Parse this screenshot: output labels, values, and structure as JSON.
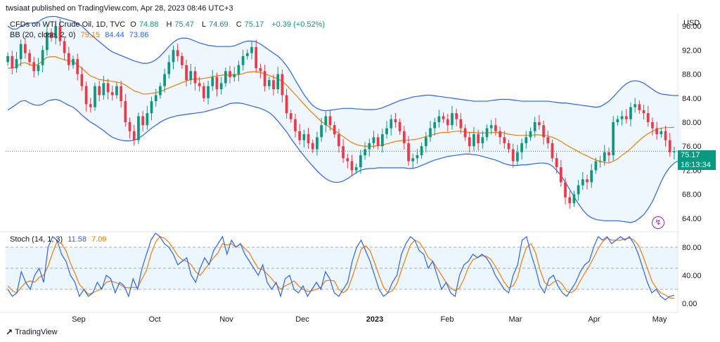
{
  "header": {
    "published": "twsiaat published on TradingView.com, Apr 28, 2023 08:46 UTC+3"
  },
  "legend": {
    "symbol": "CFDs on WTI Crude Oil, 1D, TVC",
    "o_label": "O",
    "o_value": "74.88",
    "h_label": "H",
    "h_value": "75.47",
    "l_label": "L",
    "l_value": "74.69",
    "c_label": "C",
    "c_value": "75.17",
    "change": "+0.39 (+0.52%)",
    "bb_label": "BB (20, close, 2, 0)",
    "bb_mid": "79.15",
    "bb_upper": "84.44",
    "bb_lower": "73.86",
    "stoch_label": "Stoch (14, 1, 3)",
    "stoch_k": "11.58",
    "stoch_d": "7.09"
  },
  "axis": {
    "currency": "USD",
    "price_tag": "75.17",
    "countdown": "16:13:34"
  },
  "footer": {
    "brand": "TradingView"
  },
  "colors": {
    "up": "#089981",
    "down": "#f23645",
    "bb_mid": "#f57c00",
    "bb_band": "#2962ff",
    "bb_fill": "#e3f2fd",
    "stoch_k": "#2962ff",
    "stoch_d": "#f57c00",
    "stoch_fill": "#e3f2fd",
    "grid": "#e0e3eb"
  },
  "icons": {
    "bolt": "lightning-icon",
    "logo": "tradingview-logo-icon"
  },
  "chart_data": [
    {
      "type": "candlestick",
      "ylim": [
        62,
        98
      ],
      "y_ticks": [
        "96.00",
        "92.00",
        "88.00",
        "84.00",
        "80.00",
        "76.00",
        "72.00",
        "68.00",
        "64.00"
      ],
      "x_ticks": [
        "Sep",
        "Oct",
        "Nov",
        "Dec",
        "2023",
        "Feb",
        "Mar",
        "Apr",
        "May"
      ],
      "period": "2022-08 to 2023-04",
      "close": [
        91,
        89,
        90.5,
        93,
        91.5,
        90,
        88.5,
        89.5,
        92,
        95,
        94,
        96,
        93.5,
        91.5,
        89.5,
        90.5,
        88,
        86,
        83,
        82.5,
        86,
        84.5,
        86.5,
        85,
        84.5,
        86,
        83.5,
        80,
        78.5,
        77,
        81,
        79.5,
        81.5,
        83.5,
        84.5,
        86,
        88,
        90,
        92,
        91,
        89.5,
        87,
        88.5,
        86.5,
        86,
        84,
        86,
        87.5,
        85.5,
        86.5,
        88.5,
        87.5,
        88,
        89.5,
        91,
        91.5,
        92.5,
        89,
        88.5,
        86,
        87,
        85.5,
        88,
        84.5,
        81.5,
        80.5,
        78.5,
        77,
        78,
        76.5,
        75.5,
        77.5,
        79.5,
        81,
        79.5,
        78,
        76,
        74,
        73.5,
        72,
        72.5,
        74.5,
        75.5,
        76.5,
        77.5,
        76,
        78,
        79,
        80.5,
        80,
        78.5,
        76.5,
        73.5,
        74,
        74.5,
        76,
        77.5,
        79,
        80,
        81,
        80.5,
        79.5,
        81.5,
        80.5,
        79,
        77.5,
        76,
        78,
        76.5,
        77.5,
        79,
        79.5,
        78.5,
        77.5,
        76.5,
        75.5,
        73.5,
        75,
        76.5,
        77.5,
        78.5,
        80,
        79.5,
        77.5,
        76.5,
        74,
        72.5,
        70,
        67.5,
        66.5,
        68,
        69.5,
        70.5,
        70,
        72,
        73.5,
        73.5,
        75,
        74.5,
        80,
        80.5,
        81,
        80.5,
        82.5,
        83,
        82,
        81.5,
        80,
        79,
        78,
        78.5,
        77,
        75,
        75.17
      ],
      "bb_mid": [
        89,
        89,
        89.2,
        89.8,
        89.9,
        89.6,
        89.4,
        89.6,
        90.2,
        90.8,
        90.9,
        90.9,
        90.6,
        90.4,
        90.2,
        90.1,
        89.5,
        89,
        88.3,
        87.7,
        87.4,
        87.1,
        87,
        86.9,
        86.8,
        86.7,
        86.5,
        86.2,
        85.7,
        85.2,
        85,
        84.7,
        84.7,
        84.8,
        84.9,
        85.1,
        85.4,
        85.7,
        86,
        86.3,
        86.6,
        86.9,
        87.1,
        87.2,
        87.2,
        87.3,
        87.4,
        87.6,
        87.7,
        87.8,
        87.9,
        87.8,
        87.9,
        87.9,
        88.1,
        88.3,
        88.4,
        88.4,
        88.3,
        88,
        87.8,
        87.5,
        87.2,
        86.8,
        86.2,
        85.4,
        84.6,
        83.8,
        83,
        82.2,
        81.5,
        80.8,
        80.1,
        79.6,
        79.1,
        78.6,
        78.1,
        77.6,
        77.1,
        76.6,
        76.3,
        76.1,
        76,
        76,
        76,
        76.1,
        76.2,
        76.4,
        76.6,
        76.8,
        76.9,
        77,
        77,
        77.1,
        77.2,
        77.4,
        77.6,
        77.8,
        78,
        78.2,
        78.3,
        78.3,
        78.4,
        78.5,
        78.5,
        78.4,
        78.3,
        78.3,
        78.2,
        78.2,
        78.2,
        78.3,
        78.3,
        78.3,
        78.2,
        78,
        77.9,
        77.8,
        77.8,
        77.8,
        77.8,
        77.9,
        77.9,
        77.8,
        77.7,
        77.5,
        77.2,
        76.8,
        76.3,
        75.9,
        75.5,
        75.1,
        74.7,
        74.4,
        74,
        73.7,
        73.5,
        73.3,
        73.2,
        73.5,
        73.9,
        74.5,
        75,
        75.6,
        76.3,
        77,
        77.6,
        78.1,
        78.5,
        78.8,
        79,
        79.1,
        79.1,
        79.15
      ],
      "bb_upper": [
        96,
        95.5,
        95.5,
        96,
        96.3,
        96.5,
        96.5,
        96.7,
        97.2,
        97.5,
        97.6,
        97.6,
        97.4,
        97.2,
        97,
        96.8,
        96.4,
        96,
        95.3,
        94.6,
        94,
        93.4,
        92.8,
        92.2,
        91.7,
        91.4,
        91.1,
        90.8,
        90.5,
        90.2,
        90,
        89.8,
        89.8,
        90,
        90.4,
        91,
        91.8,
        92.6,
        93.3,
        93.8,
        94,
        94,
        93.8,
        93.5,
        93.2,
        93,
        92.8,
        92.7,
        92.6,
        92.6,
        92.6,
        92.6,
        92.7,
        93,
        93.3,
        93.5,
        93.5,
        93.4,
        93,
        92.5,
        92,
        91.5,
        91,
        90.3,
        89.4,
        88.3,
        87,
        85.8,
        84.6,
        83.6,
        82.8,
        82.3,
        82,
        81.9,
        82,
        82.1,
        82.2,
        82.3,
        82.3,
        82.3,
        82.2,
        82.2,
        82.1,
        82.1,
        82.1,
        82.2,
        82.4,
        82.7,
        83,
        83.3,
        83.6,
        83.8,
        84,
        84.2,
        84.3,
        84.4,
        84.5,
        84.5,
        84.4,
        84.3,
        84.2,
        84.1,
        84,
        83.9,
        83.8,
        83.7,
        83.6,
        83.5,
        83.5,
        83.5,
        83.5,
        83.6,
        83.7,
        83.8,
        83.8,
        83.8,
        83.7,
        83.6,
        83.5,
        83.5,
        83.5,
        83.5,
        83.5,
        83.5,
        83.5,
        83.4,
        83.3,
        83.2,
        83.2,
        83.1,
        83,
        82.9,
        82.8,
        82.7,
        82.6,
        82.5,
        82.6,
        83,
        83.5,
        84.2,
        85,
        85.8,
        86.4,
        86.8,
        86.9,
        86.8,
        86.5,
        86,
        85.5,
        85,
        84.7,
        84.6,
        84.5,
        84.45,
        84.44
      ],
      "bb_lower": [
        82,
        82.5,
        83,
        83.5,
        83.6,
        83.2,
        82.9,
        82.8,
        83,
        83.5,
        83.7,
        83.8,
        83.6,
        83.2,
        82.8,
        82.5,
        81.9,
        81.2,
        80.6,
        80,
        79.6,
        79.1,
        78.6,
        78,
        77.5,
        77.2,
        77,
        76.9,
        76.9,
        77,
        77.3,
        77.8,
        78.4,
        79,
        79.5,
        80,
        80.4,
        80.7,
        80.9,
        81.1,
        81.2,
        81.3,
        81.4,
        81.5,
        81.6,
        81.7,
        81.9,
        82.1,
        82.3,
        82.5,
        82.8,
        83.1,
        83.2,
        83.2,
        83.1,
        82.9,
        82.7,
        82.5,
        82.3,
        82,
        81.6,
        81,
        80.2,
        79.3,
        78.4,
        77.3,
        76.3,
        75.3,
        74.4,
        73.5,
        72.7,
        71.9,
        71.2,
        70.6,
        70.2,
        70,
        70,
        70.2,
        70.6,
        71.1,
        71.6,
        72,
        72.2,
        72.3,
        72.3,
        72.4,
        72.4,
        72.4,
        72.4,
        72.4,
        72.4,
        72.4,
        72.3,
        72.3,
        72.5,
        72.8,
        73.1,
        73.4,
        73.7,
        73.9,
        74.1,
        74.3,
        74.4,
        74.5,
        74.6,
        74.7,
        74.7,
        74.6,
        74.5,
        74.3,
        74.1,
        73.9,
        73.7,
        73.4,
        73.1,
        72.9,
        72.8,
        72.8,
        72.9,
        72.9,
        73,
        73.1,
        73.2,
        73.2,
        73.1,
        72.7,
        72,
        71.1,
        70,
        68.8,
        67.6,
        66.4,
        65.4,
        64.6,
        64.1,
        63.8,
        63.7,
        63.6,
        63.6,
        63.6,
        63.6,
        63.5,
        63.4,
        63.3,
        63.5,
        64,
        64.6,
        65.6,
        66.8,
        68.4,
        70.1,
        71.5,
        72.5,
        73.2,
        73.6,
        73.86
      ]
    },
    {
      "type": "line",
      "name": "Stoch (14, 1, 3)",
      "ylim": [
        -8,
        100
      ],
      "y_ticks": [
        "80.00",
        "40.00",
        "0.00"
      ],
      "bands": [
        80,
        50,
        20
      ],
      "k": [
        20,
        10,
        15,
        45,
        30,
        20,
        40,
        50,
        30,
        80,
        95,
        90,
        70,
        60,
        40,
        30,
        10,
        20,
        10,
        15,
        30,
        20,
        40,
        35,
        15,
        30,
        25,
        10,
        35,
        20,
        50,
        70,
        90,
        100,
        95,
        85,
        80,
        70,
        55,
        60,
        65,
        40,
        30,
        50,
        65,
        55,
        75,
        85,
        95,
        70,
        90,
        80,
        85,
        70,
        60,
        50,
        40,
        55,
        30,
        20,
        30,
        10,
        35,
        40,
        20,
        15,
        25,
        10,
        20,
        30,
        20,
        45,
        35,
        15,
        10,
        20,
        30,
        60,
        80,
        90,
        75,
        60,
        40,
        20,
        10,
        15,
        30,
        40,
        70,
        85,
        95,
        90,
        75,
        70,
        50,
        60,
        40,
        20,
        30,
        15,
        10,
        40,
        55,
        60,
        70,
        65,
        70,
        65,
        55,
        40,
        30,
        20,
        15,
        40,
        55,
        90,
        95,
        70,
        50,
        25,
        15,
        35,
        40,
        25,
        15,
        10,
        20,
        30,
        45,
        55,
        60,
        80,
        95,
        90,
        95,
        85,
        90,
        95,
        90,
        95,
        85,
        70,
        50,
        30,
        15,
        20,
        10,
        5,
        10,
        11.58
      ],
      "d": [
        25,
        18,
        15,
        23,
        30,
        32,
        30,
        37,
        40,
        53,
        72,
        88,
        85,
        75,
        57,
        43,
        27,
        20,
        13,
        15,
        18,
        22,
        30,
        32,
        30,
        27,
        23,
        22,
        23,
        22,
        35,
        47,
        70,
        87,
        95,
        93,
        87,
        78,
        68,
        62,
        60,
        55,
        45,
        40,
        48,
        57,
        65,
        72,
        85,
        83,
        85,
        80,
        85,
        78,
        72,
        60,
        50,
        48,
        42,
        35,
        27,
        20,
        25,
        28,
        32,
        25,
        20,
        17,
        18,
        20,
        23,
        32,
        33,
        32,
        20,
        15,
        20,
        37,
        57,
        77,
        82,
        75,
        58,
        40,
        23,
        15,
        18,
        28,
        47,
        65,
        83,
        90,
        87,
        78,
        65,
        60,
        50,
        40,
        30,
        22,
        18,
        22,
        35,
        52,
        62,
        65,
        68,
        67,
        63,
        53,
        42,
        30,
        22,
        25,
        37,
        62,
        80,
        85,
        72,
        48,
        30,
        25,
        30,
        33,
        27,
        17,
        15,
        20,
        32,
        43,
        53,
        65,
        78,
        88,
        93,
        90,
        90,
        90,
        92,
        93,
        90,
        83,
        68,
        50,
        32,
        22,
        15,
        12,
        8,
        7.09
      ]
    }
  ]
}
